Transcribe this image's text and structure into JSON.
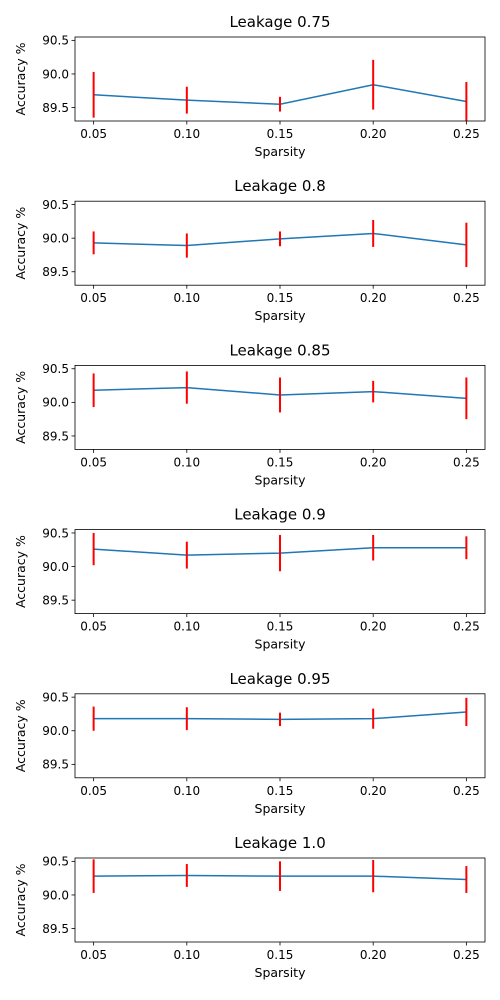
{
  "chart_data": [
    {
      "type": "line",
      "title": "Leakage 0.75",
      "xlabel": "Sparsity",
      "ylabel": "Accuracy %",
      "x": [
        0.05,
        0.1,
        0.15,
        0.2,
        0.25
      ],
      "x_tick_labels": [
        "0.05",
        "0.10",
        "0.15",
        "0.20",
        "0.25"
      ],
      "y_ticks": [
        89.5,
        90.0,
        90.5
      ],
      "y_tick_labels": [
        "89.5",
        "90.0",
        "90.5"
      ],
      "ylim": [
        89.3,
        90.55
      ],
      "xlim": [
        0.04,
        0.26
      ],
      "series": [
        {
          "values": [
            89.69,
            89.61,
            89.55,
            89.84,
            89.59
          ],
          "errors": [
            0.34,
            0.2,
            0.11,
            0.37,
            0.29
          ]
        }
      ],
      "line_color": "#1f77b4",
      "error_color": "#ff0000",
      "grid": false
    },
    {
      "type": "line",
      "title": "Leakage 0.8",
      "xlabel": "Sparsity",
      "ylabel": "Accuracy %",
      "x": [
        0.05,
        0.1,
        0.15,
        0.2,
        0.25
      ],
      "x_tick_labels": [
        "0.05",
        "0.10",
        "0.15",
        "0.20",
        "0.25"
      ],
      "y_ticks": [
        89.5,
        90.0,
        90.5
      ],
      "y_tick_labels": [
        "89.5",
        "90.0",
        "90.5"
      ],
      "ylim": [
        89.3,
        90.55
      ],
      "xlim": [
        0.04,
        0.26
      ],
      "series": [
        {
          "values": [
            89.93,
            89.89,
            89.99,
            90.07,
            89.9
          ],
          "errors": [
            0.17,
            0.18,
            0.11,
            0.2,
            0.33
          ]
        }
      ],
      "line_color": "#1f77b4",
      "error_color": "#ff0000",
      "grid": false
    },
    {
      "type": "line",
      "title": "Leakage 0.85",
      "xlabel": "Sparsity",
      "ylabel": "Accuracy %",
      "x": [
        0.05,
        0.1,
        0.15,
        0.2,
        0.25
      ],
      "x_tick_labels": [
        "0.05",
        "0.10",
        "0.15",
        "0.20",
        "0.25"
      ],
      "y_ticks": [
        89.5,
        90.0,
        90.5
      ],
      "y_tick_labels": [
        "89.5",
        "90.0",
        "90.5"
      ],
      "ylim": [
        89.3,
        90.55
      ],
      "xlim": [
        0.04,
        0.26
      ],
      "series": [
        {
          "values": [
            90.18,
            90.22,
            90.11,
            90.16,
            90.06
          ],
          "errors": [
            0.25,
            0.24,
            0.26,
            0.16,
            0.31
          ]
        }
      ],
      "line_color": "#1f77b4",
      "error_color": "#ff0000",
      "grid": false
    },
    {
      "type": "line",
      "title": "Leakage 0.9",
      "xlabel": "Sparsity",
      "ylabel": "Accuracy %",
      "x": [
        0.05,
        0.1,
        0.15,
        0.2,
        0.25
      ],
      "x_tick_labels": [
        "0.05",
        "0.10",
        "0.15",
        "0.20",
        "0.25"
      ],
      "y_ticks": [
        89.5,
        90.0,
        90.5
      ],
      "y_tick_labels": [
        "89.5",
        "90.0",
        "90.5"
      ],
      "ylim": [
        89.3,
        90.55
      ],
      "xlim": [
        0.04,
        0.26
      ],
      "series": [
        {
          "values": [
            90.26,
            90.17,
            90.2,
            90.28,
            90.28
          ],
          "errors": [
            0.24,
            0.2,
            0.27,
            0.19,
            0.17
          ]
        }
      ],
      "line_color": "#1f77b4",
      "error_color": "#ff0000",
      "grid": false
    },
    {
      "type": "line",
      "title": "Leakage 0.95",
      "xlabel": "Sparsity",
      "ylabel": "Accuracy %",
      "x": [
        0.05,
        0.1,
        0.15,
        0.2,
        0.25
      ],
      "x_tick_labels": [
        "0.05",
        "0.10",
        "0.15",
        "0.20",
        "0.25"
      ],
      "y_ticks": [
        89.5,
        90.0,
        90.5
      ],
      "y_tick_labels": [
        "89.5",
        "90.0",
        "90.5"
      ],
      "ylim": [
        89.3,
        90.55
      ],
      "xlim": [
        0.04,
        0.26
      ],
      "series": [
        {
          "values": [
            90.18,
            90.18,
            90.17,
            90.18,
            90.28
          ],
          "errors": [
            0.18,
            0.17,
            0.1,
            0.15,
            0.21
          ]
        }
      ],
      "line_color": "#1f77b4",
      "error_color": "#ff0000",
      "grid": false
    },
    {
      "type": "line",
      "title": "Leakage 1.0",
      "xlabel": "Sparsity",
      "ylabel": "Accuracy %",
      "x": [
        0.05,
        0.1,
        0.15,
        0.2,
        0.25
      ],
      "x_tick_labels": [
        "0.05",
        "0.10",
        "0.15",
        "0.20",
        "0.25"
      ],
      "y_ticks": [
        89.5,
        90.0,
        90.5
      ],
      "y_tick_labels": [
        "89.5",
        "90.0",
        "90.5"
      ],
      "ylim": [
        89.3,
        90.55
      ],
      "xlim": [
        0.04,
        0.26
      ],
      "series": [
        {
          "values": [
            90.28,
            90.29,
            90.28,
            90.28,
            90.23
          ],
          "errors": [
            0.25,
            0.17,
            0.22,
            0.24,
            0.2
          ]
        }
      ],
      "line_color": "#1f77b4",
      "error_color": "#ff0000",
      "grid": false
    }
  ]
}
